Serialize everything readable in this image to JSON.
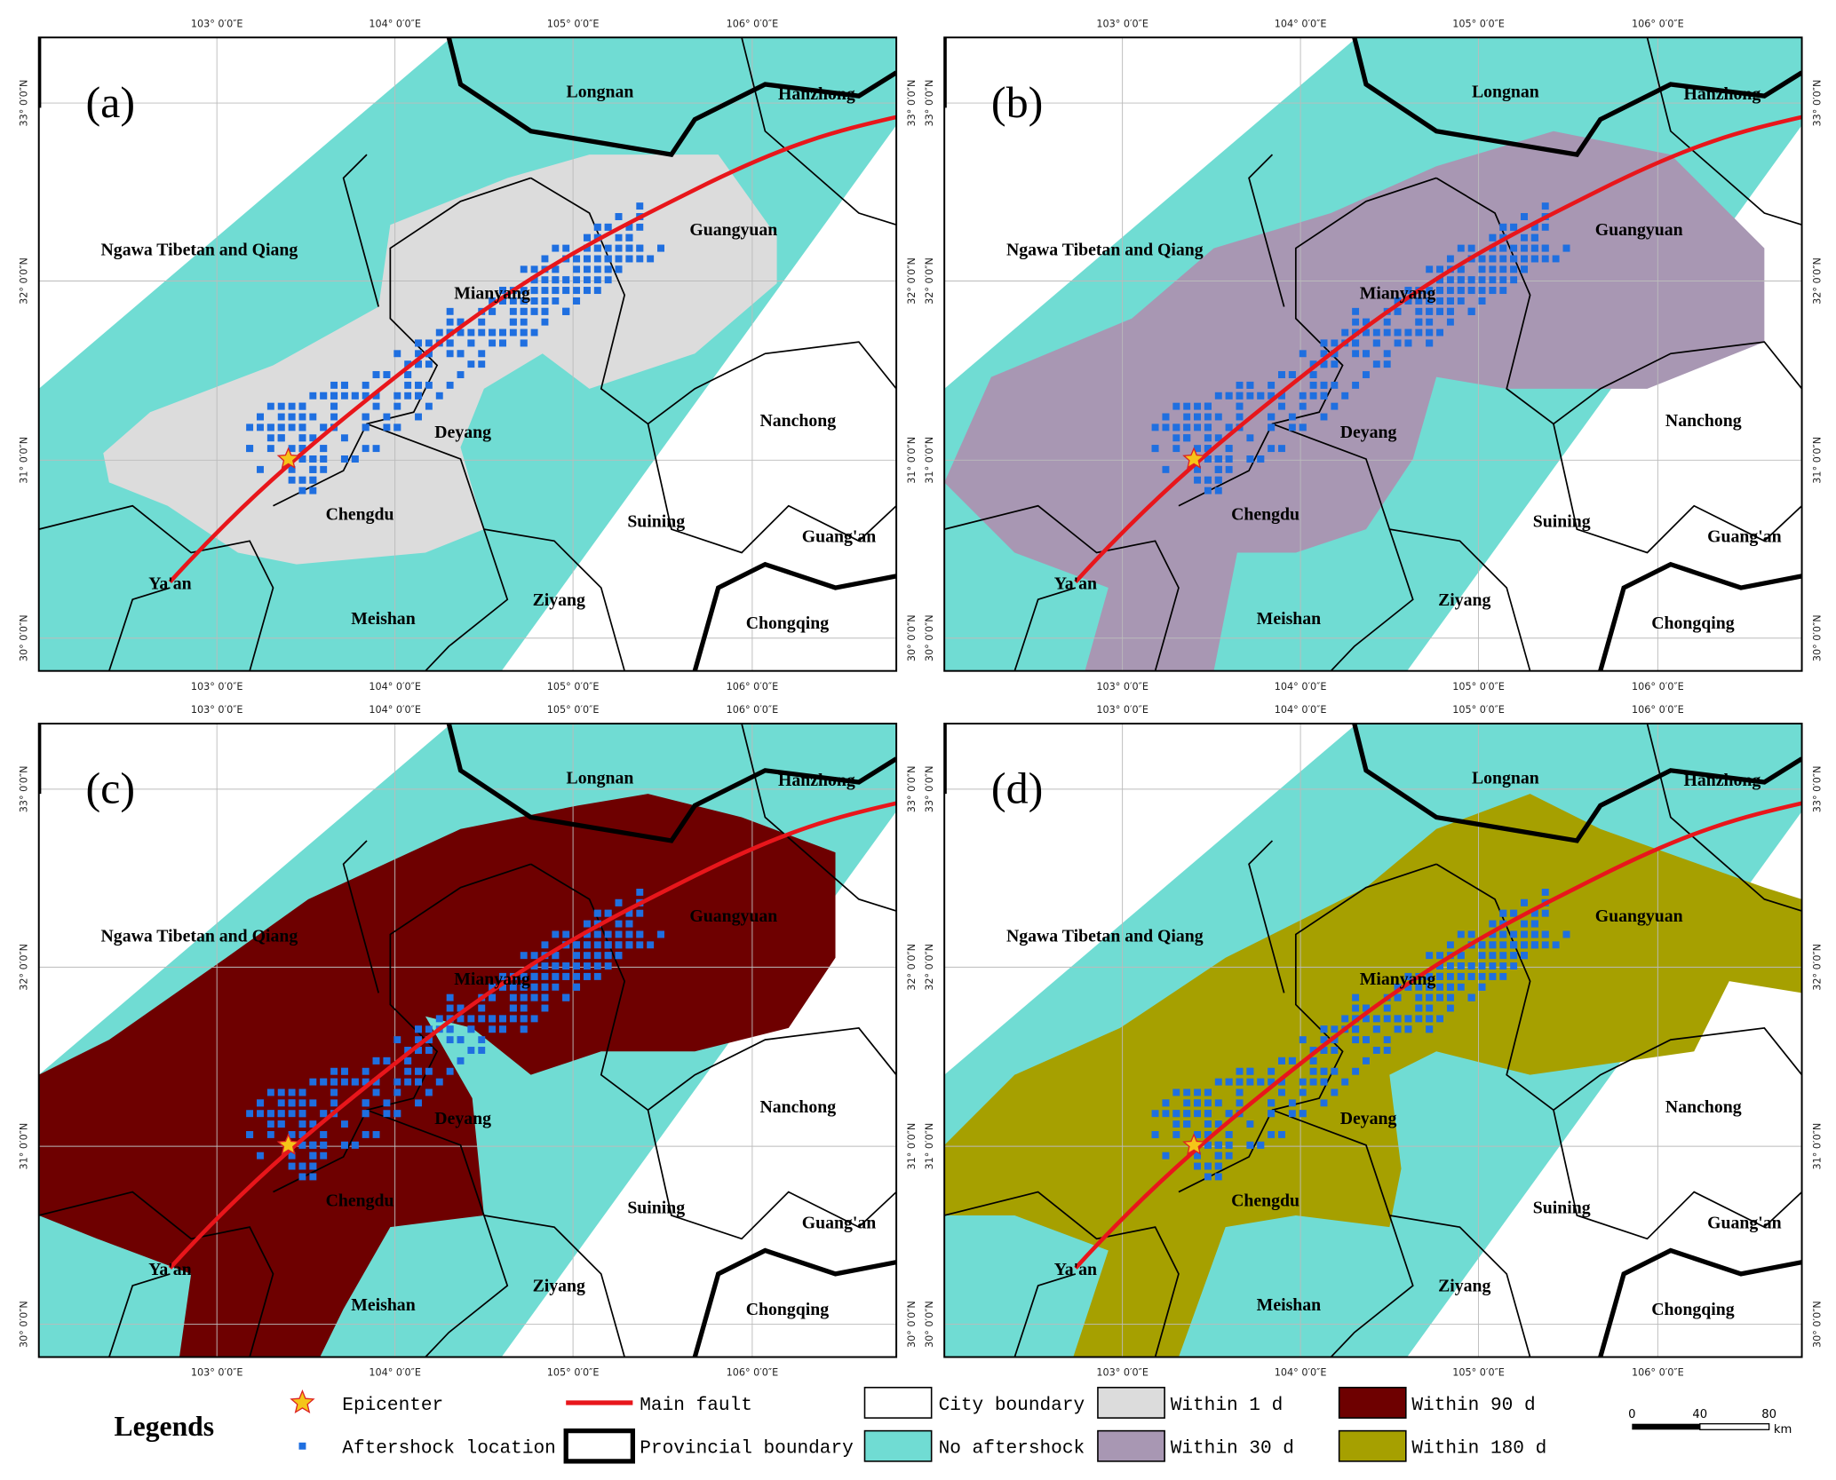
{
  "panels": [
    {
      "label": "(a)"
    },
    {
      "label": "(b)"
    },
    {
      "label": "(c)"
    },
    {
      "label": "(d)"
    }
  ],
  "longitude_labels": [
    "103° 0′0″E",
    "104° 0′0″E",
    "105° 0′0″E",
    "106° 0′0″E"
  ],
  "latitude_labels": [
    "33° 0′0″N",
    "32° 0′0″N",
    "31° 0′0″N",
    "30° 0′0″N"
  ],
  "cities": [
    "Longnan",
    "Hanzhong",
    "Ngawa Tibetan and Qiang",
    "Guangyuan",
    "Mianyang",
    "Deyang",
    "Nanchong",
    "Chengdu",
    "Suining",
    "Guang'an",
    "Ya'an",
    "Ziyang",
    "Meishan",
    "Chongqing"
  ],
  "legend": {
    "title": "Legends",
    "items": [
      {
        "label": "Epicenter",
        "color": "#f5c518"
      },
      {
        "label": "Aftershock location",
        "color": "#1f6fe0"
      },
      {
        "label": "Main fault",
        "color": "#e8161b"
      },
      {
        "label": "Provincial boundary"
      },
      {
        "label": "City boundary"
      },
      {
        "label": "No aftershock",
        "color": "#70dcd3"
      },
      {
        "label": "Within 1 d",
        "color": "#dcdcdc"
      },
      {
        "label": "Within 30 d",
        "color": "#a897b3"
      },
      {
        "label": "Within 90 d",
        "color": "#6e0000"
      },
      {
        "label": "Within 180 d",
        "color": "#a6a000"
      }
    ]
  },
  "scale_bar": {
    "ticks": [
      "0",
      "40",
      "80"
    ],
    "unit": "km"
  }
}
